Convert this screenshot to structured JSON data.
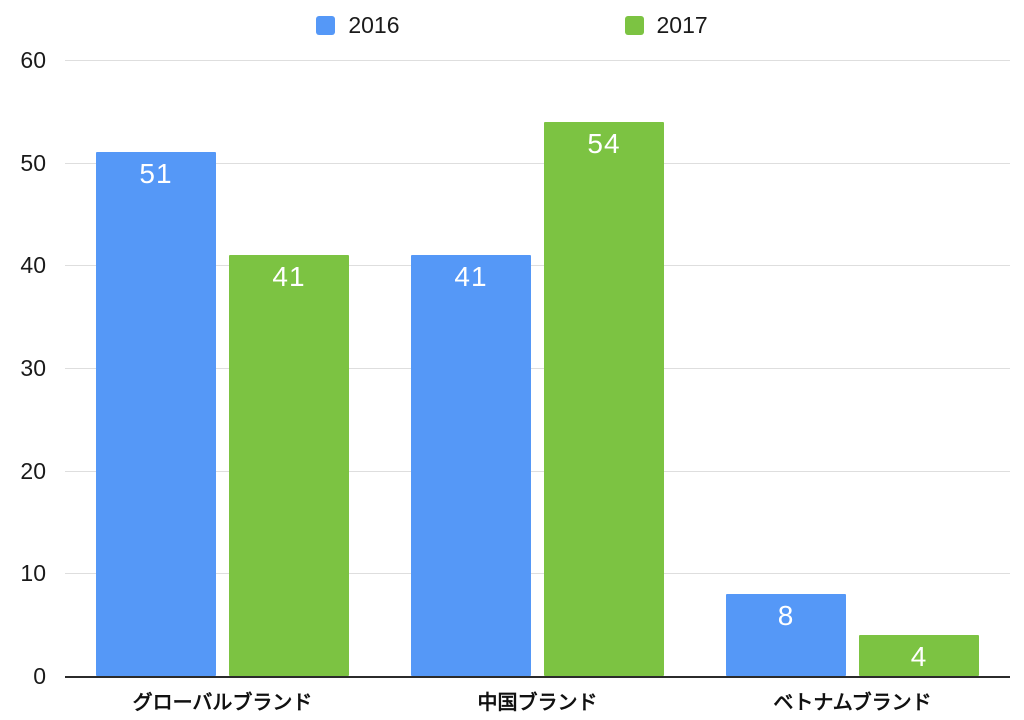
{
  "chart_data": {
    "type": "bar",
    "title": "",
    "categories": [
      "グローバルブランド",
      "中国ブランド",
      "ベトナムブランド"
    ],
    "series": [
      {
        "name": "2016",
        "color": "#5598F7",
        "values": [
          51,
          41,
          8
        ]
      },
      {
        "name": "2017",
        "color": "#7CC342",
        "values": [
          41,
          54,
          4
        ]
      }
    ],
    "ylim": [
      0,
      60
    ],
    "yticks": [
      0,
      10,
      20,
      30,
      40,
      50,
      60
    ],
    "grid": true,
    "legend_position": "top",
    "bar_label_color": "#ffffff",
    "axis_color": "#2b2b2b",
    "gridline_color": "#dedede"
  }
}
